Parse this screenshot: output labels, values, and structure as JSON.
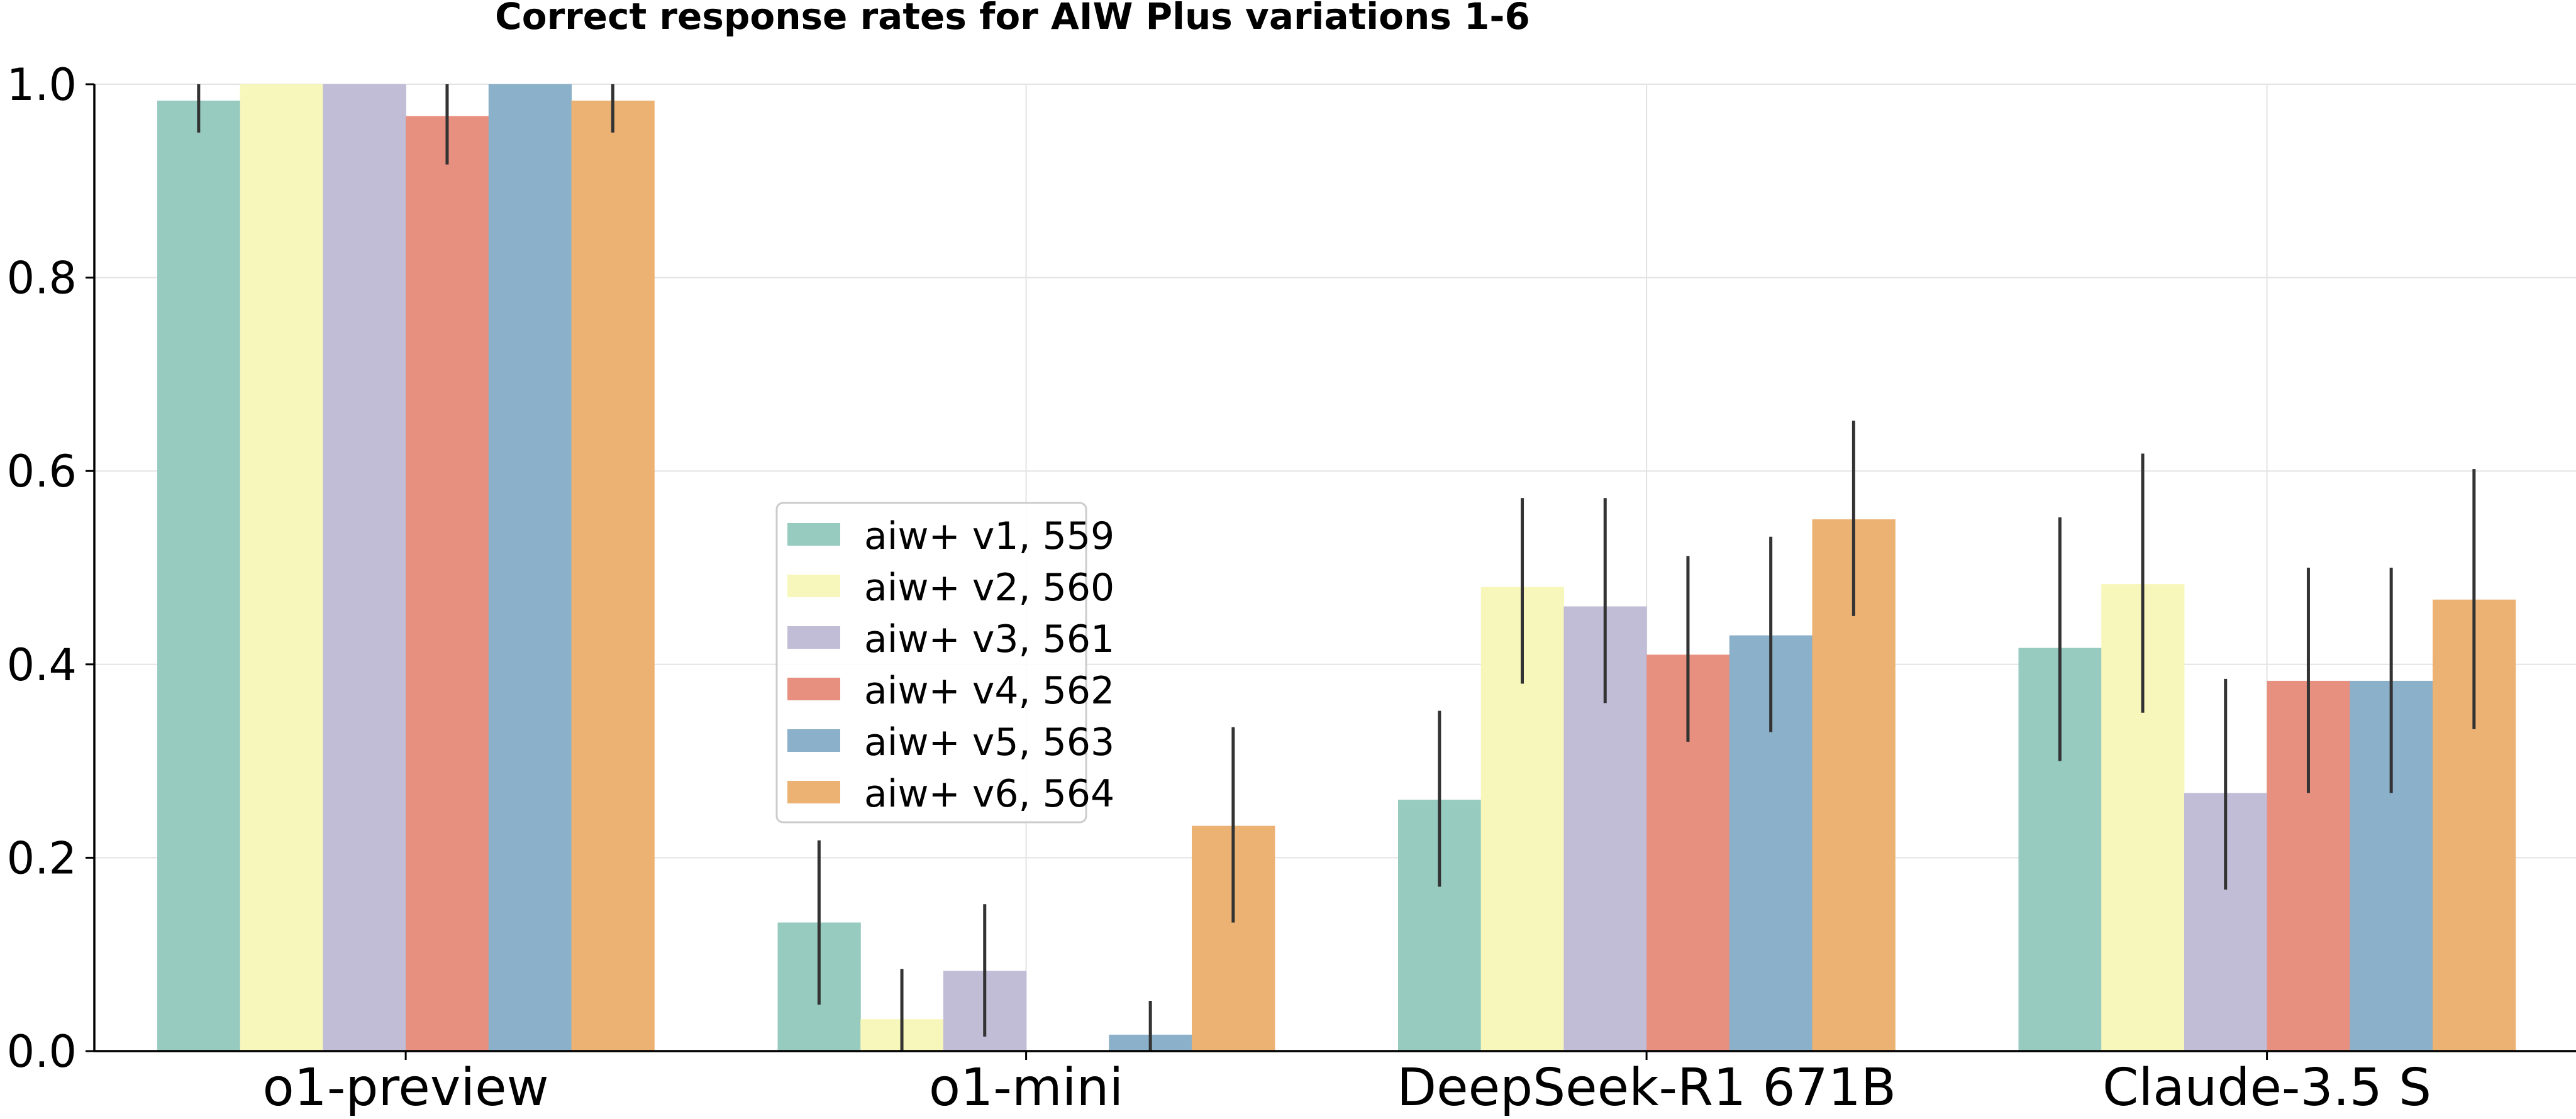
{
  "chart_data": {
    "type": "bar",
    "title": "Correct response rates for AIW Plus variations 1-6",
    "xlabel": "",
    "ylabel": "",
    "ylim": [
      0,
      1.0
    ],
    "yticks": [
      "0.0",
      "0.2",
      "0.4",
      "0.6",
      "0.8",
      "1.0"
    ],
    "grid": true,
    "legend_position": "center-left",
    "categories": [
      "o1-preview",
      "o1-mini",
      "DeepSeek-R1 671B",
      "Claude-3.5 S"
    ],
    "series": [
      {
        "name": "aiw+ v1, 559",
        "color": "#97cbc0",
        "values": [
          0.983,
          0.133,
          0.26,
          0.417
        ],
        "err_low": [
          0.95,
          0.048,
          0.17,
          0.3
        ],
        "err_high": [
          1.0,
          0.218,
          0.352,
          0.552
        ]
      },
      {
        "name": "aiw+ v2, 560",
        "color": "#f7f7bc",
        "values": [
          1.0,
          0.033,
          0.48,
          0.483
        ],
        "err_low": [
          1.0,
          0.0,
          0.38,
          0.35
        ],
        "err_high": [
          1.0,
          0.085,
          0.572,
          0.618
        ]
      },
      {
        "name": "aiw+ v3, 561",
        "color": "#c1bdd7",
        "values": [
          1.0,
          0.083,
          0.46,
          0.267
        ],
        "err_low": [
          1.0,
          0.015,
          0.36,
          0.167
        ],
        "err_high": [
          1.0,
          0.152,
          0.572,
          0.385
        ]
      },
      {
        "name": "aiw+ v4, 562",
        "color": "#e8907f",
        "values": [
          0.967,
          0.0,
          0.41,
          0.383
        ],
        "err_low": [
          0.917,
          0.0,
          0.32,
          0.267
        ],
        "err_high": [
          1.0,
          0.0,
          0.512,
          0.5
        ]
      },
      {
        "name": "aiw+ v5, 563",
        "color": "#8bb0c9",
        "values": [
          1.0,
          0.017,
          0.43,
          0.383
        ],
        "err_low": [
          1.0,
          0.0,
          0.33,
          0.267
        ],
        "err_high": [
          1.0,
          0.052,
          0.532,
          0.5
        ]
      },
      {
        "name": "aiw+ v6, 564",
        "color": "#ebb273",
        "values": [
          0.983,
          0.233,
          0.55,
          0.467
        ],
        "err_low": [
          0.95,
          0.133,
          0.45,
          0.333
        ],
        "err_high": [
          1.0,
          0.335,
          0.652,
          0.602
        ]
      }
    ]
  }
}
